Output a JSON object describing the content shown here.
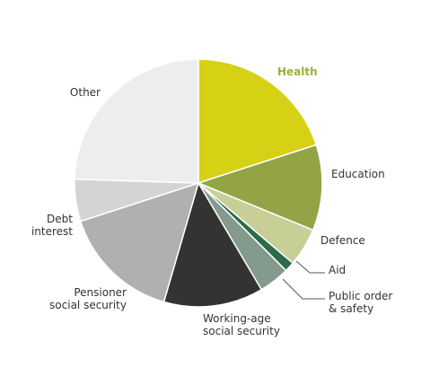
{
  "chart_data": {
    "type": "pie",
    "start_angle_deg": 0,
    "direction": "clockwise",
    "slices": [
      {
        "label": "Health",
        "lines": [
          "Health"
        ],
        "value": 20.0,
        "color": "#d6d114",
        "label_color": "#9ab13a"
      },
      {
        "label": "Education",
        "lines": [
          "Education"
        ],
        "value": 11.2,
        "color": "#93a446",
        "label_color": "#333333"
      },
      {
        "label": "Defence",
        "lines": [
          "Defence"
        ],
        "value": 5.0,
        "color": "#c7cf97",
        "label_color": "#333333"
      },
      {
        "label": "Aid",
        "lines": [
          "Aid"
        ],
        "value": 1.3,
        "color": "#2e6b4a",
        "label_color": "#333333"
      },
      {
        "label": "Public order & safety",
        "lines": [
          "Public order",
          "& safety"
        ],
        "value": 4.0,
        "color": "#849a8c",
        "label_color": "#333333"
      },
      {
        "label": "Working-age social security",
        "lines": [
          "Working-age",
          "social security"
        ],
        "value": 13.0,
        "color": "#333333",
        "label_color": "#333333"
      },
      {
        "label": "Pensioner social security",
        "lines": [
          "Pensioner",
          "social security"
        ],
        "value": 15.5,
        "color": "#b1b0b1",
        "label_color": "#333333"
      },
      {
        "label": "Debt interest",
        "lines": [
          "Debt",
          "interest"
        ],
        "value": 5.5,
        "color": "#d4d4d4",
        "label_color": "#333333"
      },
      {
        "label": "Other",
        "lines": [
          "Other"
        ],
        "value": 24.5,
        "color": "#ededed",
        "label_color": "#333333"
      }
    ]
  }
}
